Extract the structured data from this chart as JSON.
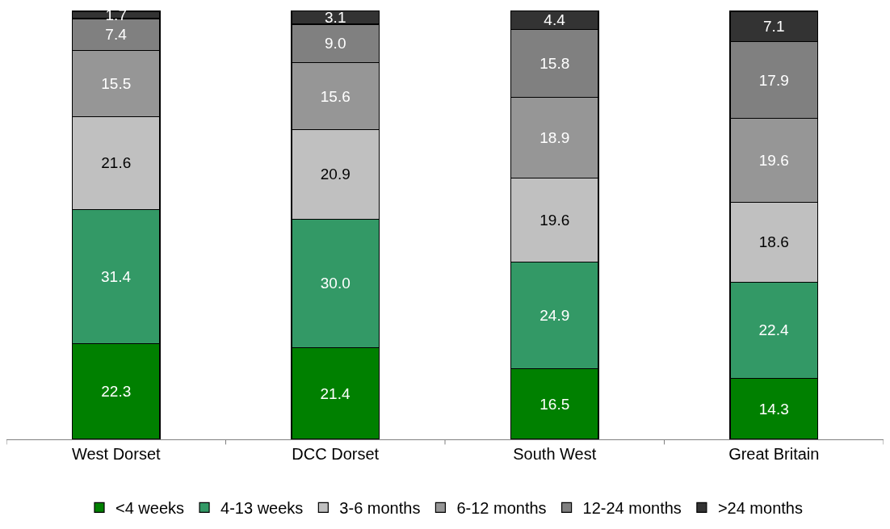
{
  "chart_data": {
    "type": "bar",
    "stacked": true,
    "legend": "bottom",
    "categories": [
      "West Dorset",
      "DCC Dorset",
      "South West",
      "Great Britain"
    ],
    "series": [
      {
        "name": "<4 weeks",
        "color": "#008000",
        "values": [
          22.3,
          21.4,
          16.5,
          14.3
        ],
        "value_labels": [
          "22.3",
          "21.4",
          "16.5",
          "14.3"
        ]
      },
      {
        "name": "4-13 weeks",
        "color": "#339966",
        "values": [
          31.4,
          30.0,
          24.9,
          22.4
        ],
        "value_labels": [
          "31.4",
          "30.0",
          "24.9",
          "22.4"
        ]
      },
      {
        "name": "3-6 months",
        "color": "#c0c0c0",
        "values": [
          21.6,
          20.9,
          19.6,
          18.6
        ],
        "value_labels": [
          "21.6",
          "20.9",
          "19.6",
          "18.6"
        ]
      },
      {
        "name": "6-12 months",
        "color": "#969696",
        "values": [
          15.5,
          15.6,
          18.9,
          19.6
        ],
        "value_labels": [
          "15.5",
          "15.6",
          "18.9",
          "19.6"
        ]
      },
      {
        "name": "12-24 months",
        "color": "#808080",
        "values": [
          7.4,
          9.0,
          15.8,
          17.9
        ],
        "value_labels": [
          "7.4",
          "9.0",
          "15.8",
          "17.9"
        ]
      },
      {
        "name": ">24 months",
        "color": "#333333",
        "values": [
          1.7,
          3.1,
          4.4,
          7.1
        ],
        "value_labels": [
          "1.7",
          "3.1",
          "4.4",
          "7.1"
        ]
      }
    ]
  }
}
